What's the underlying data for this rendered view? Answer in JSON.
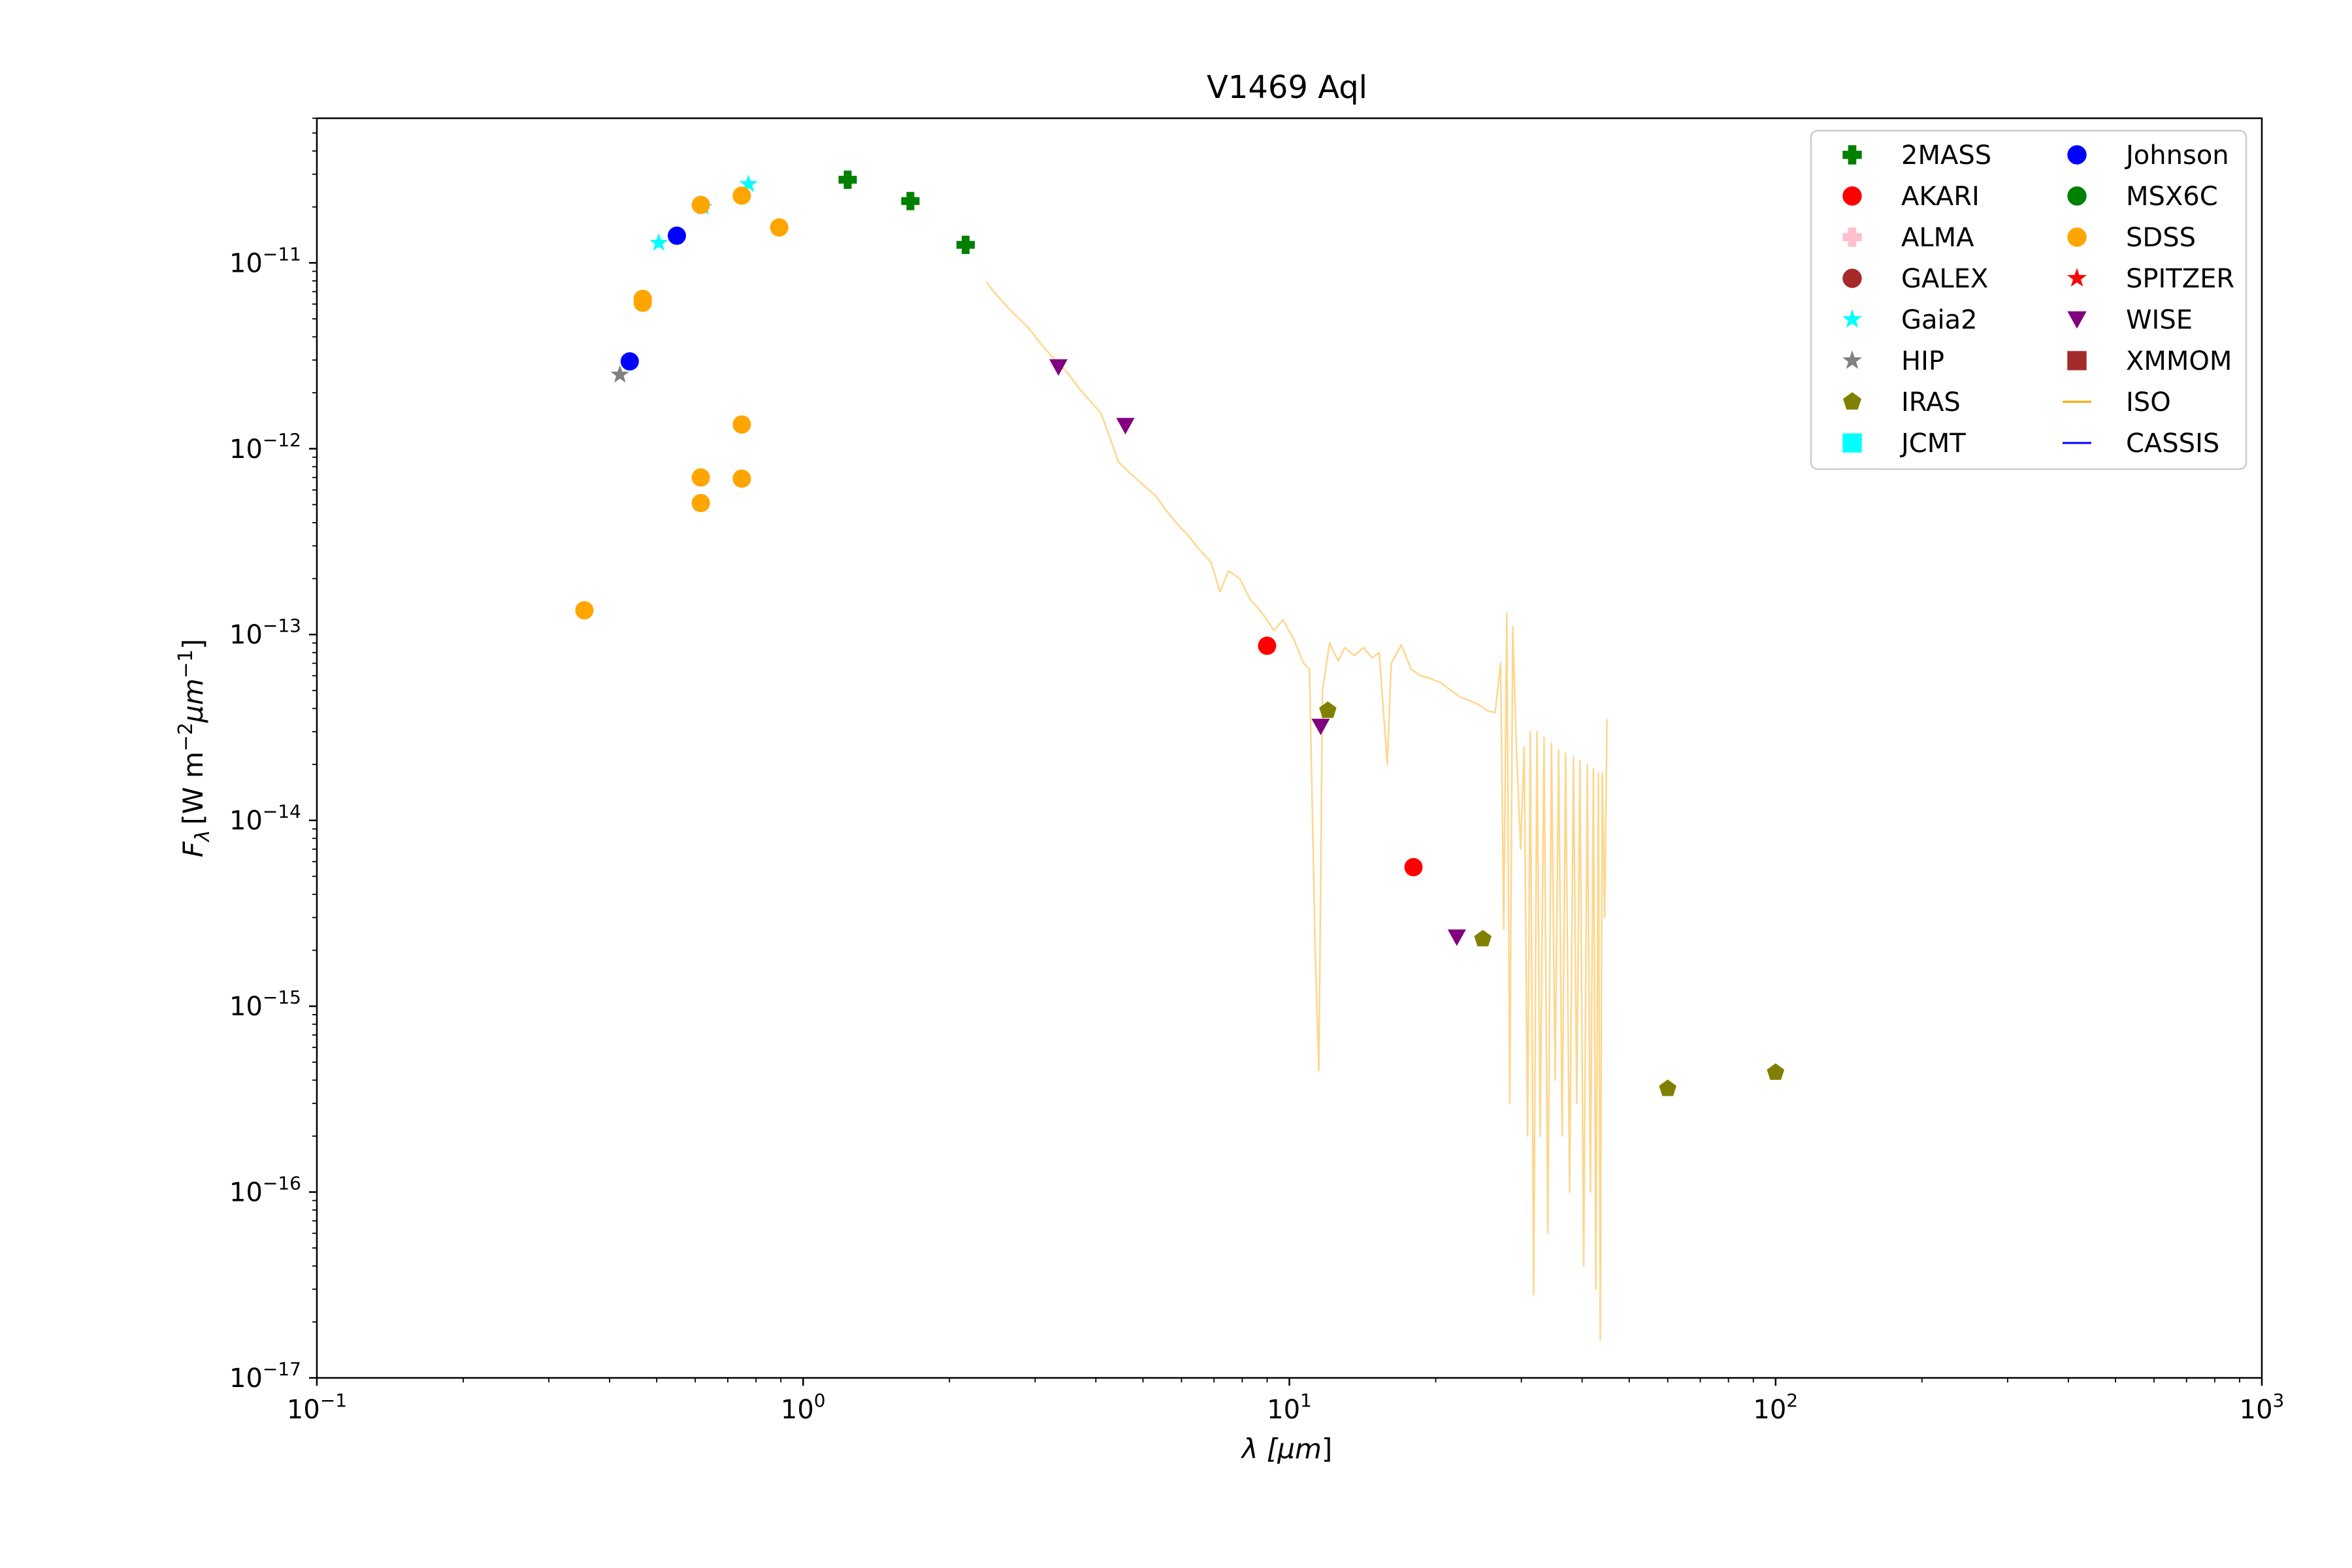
{
  "chart_data": {
    "type": "scatter",
    "title": "V1469 Aql",
    "xlabel_main": "λ [",
    "xlabel_unit": "μm",
    "xlabel_end": "]",
    "ylabel_var": "F",
    "ylabel_sub": "λ",
    "ylabel_units": "[W m",
    "ylabel_exp1": "−2",
    "ylabel_mu": "μm",
    "ylabel_exp2": "−1",
    "ylabel_close": "]",
    "x_scale": "log",
    "y_scale": "log",
    "xlim": [
      0.1,
      1000
    ],
    "ylim": [
      1e-17,
      6e-11
    ],
    "x_ticks": [
      {
        "value": 0.1,
        "base": "10",
        "exp": "−1"
      },
      {
        "value": 1,
        "base": "10",
        "exp": "0"
      },
      {
        "value": 10,
        "base": "10",
        "exp": "1"
      },
      {
        "value": 100,
        "base": "10",
        "exp": "2"
      },
      {
        "value": 1000,
        "base": "10",
        "exp": "3"
      }
    ],
    "y_ticks": [
      {
        "value": 1e-11,
        "base": "10",
        "exp": "−11"
      },
      {
        "value": 1e-12,
        "base": "10",
        "exp": "−12"
      },
      {
        "value": 1e-13,
        "base": "10",
        "exp": "−13"
      },
      {
        "value": 1e-14,
        "base": "10",
        "exp": "−14"
      },
      {
        "value": 1e-15,
        "base": "10",
        "exp": "−15"
      },
      {
        "value": 1e-16,
        "base": "10",
        "exp": "−16"
      },
      {
        "value": 1e-17,
        "base": "10",
        "exp": "−17"
      }
    ],
    "grid": false,
    "legend_position": "top-right",
    "series": [
      {
        "name": "2MASS",
        "marker": "plus",
        "color": "#008000",
        "points": [
          [
            1.235,
            2.8e-11
          ],
          [
            1.662,
            2.15e-11
          ],
          [
            2.159,
            1.25e-11
          ]
        ]
      },
      {
        "name": "AKARI",
        "marker": "circle",
        "color": "#ff0000",
        "points": [
          [
            9.0,
            8.7e-14
          ],
          [
            18.0,
            5.6e-15
          ]
        ]
      },
      {
        "name": "ALMA",
        "marker": "plus",
        "color": "#ffc0cb",
        "points": []
      },
      {
        "name": "GALEX",
        "marker": "circle",
        "color": "#a52a2a",
        "points": []
      },
      {
        "name": "Gaia2",
        "marker": "star",
        "color": "#00ffff",
        "points": [
          [
            0.505,
            1.28e-11
          ],
          [
            0.623,
            2e-11
          ],
          [
            0.772,
            2.65e-11
          ]
        ]
      },
      {
        "name": "HIP",
        "marker": "star",
        "color": "#808080",
        "points": [
          [
            0.42,
            2.5e-12
          ]
        ]
      },
      {
        "name": "IRAS",
        "marker": "pentagon",
        "color": "#808000",
        "points": [
          [
            12.0,
            3.9e-14
          ],
          [
            25.0,
            2.3e-15
          ],
          [
            60.0,
            3.6e-16
          ],
          [
            100.0,
            4.4e-16
          ]
        ]
      },
      {
        "name": "JCMT",
        "marker": "square",
        "color": "#00ffff",
        "points": []
      },
      {
        "name": "Johnson",
        "marker": "circle",
        "color": "#0000ff",
        "points": [
          [
            0.44,
            2.95e-12
          ],
          [
            0.55,
            1.4e-11
          ]
        ]
      },
      {
        "name": "MSX6C",
        "marker": "circle",
        "color": "#008000",
        "points": []
      },
      {
        "name": "SDSS",
        "marker": "circle",
        "color": "#ffa500",
        "points": [
          [
            0.355,
            1.35e-13
          ],
          [
            0.468,
            6.4e-12
          ],
          [
            0.468,
            6.1e-12
          ],
          [
            0.616,
            2.05e-11
          ],
          [
            0.616,
            7e-13
          ],
          [
            0.616,
            5.1e-13
          ],
          [
            0.748,
            2.3e-11
          ],
          [
            0.748,
            1.35e-12
          ],
          [
            0.748,
            6.9e-13
          ],
          [
            0.893,
            1.55e-11
          ]
        ]
      },
      {
        "name": "SPITZER",
        "marker": "star",
        "color": "#ff0000",
        "points": []
      },
      {
        "name": "WISE",
        "marker": "triangle_down",
        "color": "#800080",
        "points": [
          [
            3.35,
            2.75e-12
          ],
          [
            4.6,
            1.33e-12
          ],
          [
            11.6,
            3.2e-14
          ],
          [
            22.1,
            2.35e-15
          ]
        ]
      },
      {
        "name": "XMMOM",
        "marker": "square",
        "color": "#a52a2a",
        "points": []
      },
      {
        "name": "ISO",
        "marker": "line",
        "color": "#ffa500",
        "points": []
      },
      {
        "name": "CASSIS",
        "marker": "line",
        "color": "#0000ff",
        "points": []
      }
    ],
    "iso_spectrum": {
      "color": "#ffa500",
      "points": [
        [
          2.38,
          7.9e-12
        ],
        [
          2.5,
          6.7e-12
        ],
        [
          2.7,
          5.4e-12
        ],
        [
          2.9,
          4.5e-12
        ],
        [
          3.1,
          3.6e-12
        ],
        [
          3.3,
          3e-12
        ],
        [
          3.5,
          2.55e-12
        ],
        [
          3.7,
          2.1e-12
        ],
        [
          3.9,
          1.8e-12
        ],
        [
          4.1,
          1.55e-12
        ],
        [
          4.3,
          1.1e-12
        ],
        [
          4.45,
          8.5e-13
        ],
        [
          4.7,
          7.4e-13
        ],
        [
          5.0,
          6.4e-13
        ],
        [
          5.3,
          5.6e-13
        ],
        [
          5.6,
          4.6e-13
        ],
        [
          5.9,
          3.9e-13
        ],
        [
          6.2,
          3.4e-13
        ],
        [
          6.5,
          2.9e-13
        ],
        [
          6.9,
          2.45e-13
        ],
        [
          7.2,
          1.7e-13
        ],
        [
          7.5,
          2.2e-13
        ],
        [
          7.9,
          2e-13
        ],
        [
          8.3,
          1.55e-13
        ],
        [
          8.8,
          1.3e-13
        ],
        [
          9.3,
          1.05e-13
        ],
        [
          9.7,
          1.2e-13
        ],
        [
          10.2,
          9.5e-14
        ],
        [
          10.7,
          7e-14
        ],
        [
          11.0,
          6.5e-14
        ],
        [
          11.3,
          2e-15
        ],
        [
          11.5,
          4.5e-16
        ],
        [
          11.7,
          5e-14
        ],
        [
          12.1,
          9e-14
        ],
        [
          12.6,
          7.2e-14
        ],
        [
          13.0,
          8.5e-14
        ],
        [
          13.6,
          7.7e-14
        ],
        [
          14.2,
          8.5e-14
        ],
        [
          14.8,
          7.5e-14
        ],
        [
          15.3,
          8e-14
        ],
        [
          15.9,
          2e-14
        ],
        [
          16.2,
          7e-14
        ],
        [
          17.0,
          8.8e-14
        ],
        [
          17.8,
          6.5e-14
        ],
        [
          18.6,
          6e-14
        ],
        [
          19.5,
          5.8e-14
        ],
        [
          20.5,
          5.5e-14
        ],
        [
          21.5,
          5e-14
        ],
        [
          22.5,
          4.6e-14
        ],
        [
          23.5,
          4.4e-14
        ],
        [
          24.5,
          4.2e-14
        ],
        [
          25.5,
          3.9e-14
        ],
        [
          26.5,
          3.8e-14
        ],
        [
          27.2,
          7e-14
        ],
        [
          27.6,
          2.6e-15
        ],
        [
          28.0,
          1.3e-13
        ],
        [
          28.4,
          3e-16
        ],
        [
          28.8,
          1.1e-13
        ],
        [
          29.3,
          2.5e-14
        ],
        [
          29.9,
          7e-15
        ],
        [
          30.4,
          2.5e-14
        ],
        [
          30.9,
          2e-16
        ],
        [
          31.3,
          3e-14
        ],
        [
          31.8,
          2.8e-17
        ],
        [
          32.3,
          3e-14
        ],
        [
          32.8,
          2e-16
        ],
        [
          33.4,
          2.8e-14
        ],
        [
          34.0,
          6e-17
        ],
        [
          34.6,
          2.6e-14
        ],
        [
          35.2,
          4e-16
        ],
        [
          35.8,
          2.4e-14
        ],
        [
          36.4,
          2e-16
        ],
        [
          37.0,
          2.3e-14
        ],
        [
          37.7,
          1e-16
        ],
        [
          38.4,
          2.2e-14
        ],
        [
          39.0,
          3e-16
        ],
        [
          39.6,
          2.1e-14
        ],
        [
          40.3,
          4e-17
        ],
        [
          41.0,
          2e-14
        ],
        [
          41.6,
          1e-16
        ],
        [
          42.2,
          1.9e-14
        ],
        [
          42.7,
          3e-17
        ],
        [
          43.2,
          1.8e-14
        ],
        [
          43.6,
          1.6e-17
        ],
        [
          44.0,
          1.8e-14
        ],
        [
          44.5,
          3e-15
        ],
        [
          45.0,
          3.5e-14
        ]
      ]
    }
  }
}
